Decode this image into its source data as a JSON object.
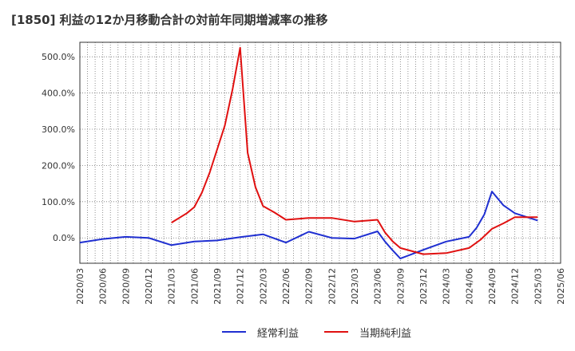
{
  "chart_data": {
    "type": "line",
    "title": "[1850]  利益の12か月移動合計の対前年同期増減率の推移",
    "xlabel": "",
    "ylabel": "",
    "ylim": [
      -70,
      540
    ],
    "yticks": [
      {
        "value": 0,
        "label": "0.0%"
      },
      {
        "value": 100,
        "label": "100.0%"
      },
      {
        "value": 200,
        "label": "200.0%"
      },
      {
        "value": 300,
        "label": "300.0%"
      },
      {
        "value": 400,
        "label": "400.0%"
      },
      {
        "value": 500,
        "label": "500.0%"
      }
    ],
    "categories": [
      "2020/03",
      "2020/06",
      "2020/09",
      "2020/12",
      "2021/03",
      "2021/06",
      "2021/09",
      "2021/12",
      "2022/03",
      "2022/06",
      "2022/09",
      "2022/12",
      "2023/03",
      "2023/06",
      "2023/09",
      "2023/12",
      "2024/03",
      "2024/06",
      "2024/09",
      "2024/12",
      "2025/03",
      "2025/06"
    ],
    "grid": true,
    "legend_position": "bottom",
    "series": [
      {
        "name": "経常利益",
        "color": "#1f2fd1",
        "points": [
          {
            "x": 0,
            "y": -13
          },
          {
            "x": 1,
            "y": -3
          },
          {
            "x": 2,
            "y": 3
          },
          {
            "x": 3,
            "y": 0
          },
          {
            "x": 4,
            "y": -20
          },
          {
            "x": 5,
            "y": -10
          },
          {
            "x": 6,
            "y": -7
          },
          {
            "x": 7,
            "y": 2
          },
          {
            "x": 8,
            "y": 10
          },
          {
            "x": 9,
            "y": -13
          },
          {
            "x": 10,
            "y": 17
          },
          {
            "x": 11,
            "y": 0
          },
          {
            "x": 12,
            "y": -2
          },
          {
            "x": 13,
            "y": 18
          },
          {
            "x": 13.33,
            "y": -10
          },
          {
            "x": 13.67,
            "y": -35
          },
          {
            "x": 14,
            "y": -57
          },
          {
            "x": 15,
            "y": -33
          },
          {
            "x": 16,
            "y": -10
          },
          {
            "x": 17,
            "y": 3
          },
          {
            "x": 17.33,
            "y": 28
          },
          {
            "x": 17.67,
            "y": 65
          },
          {
            "x": 18,
            "y": 128
          },
          {
            "x": 18.5,
            "y": 90
          },
          {
            "x": 19,
            "y": 68
          },
          {
            "x": 20,
            "y": 48
          }
        ]
      },
      {
        "name": "当期純利益",
        "color": "#e01010",
        "points": [
          {
            "x": 4,
            "y": 42
          },
          {
            "x": 4.67,
            "y": 68
          },
          {
            "x": 5,
            "y": 85
          },
          {
            "x": 5.33,
            "y": 125
          },
          {
            "x": 5.67,
            "y": 180
          },
          {
            "x": 6,
            "y": 245
          },
          {
            "x": 6.33,
            "y": 310
          },
          {
            "x": 6.67,
            "y": 410
          },
          {
            "x": 7,
            "y": 525
          },
          {
            "x": 7.33,
            "y": 235
          },
          {
            "x": 7.67,
            "y": 140
          },
          {
            "x": 8,
            "y": 88
          },
          {
            "x": 8.5,
            "y": 70
          },
          {
            "x": 9,
            "y": 50
          },
          {
            "x": 10,
            "y": 55
          },
          {
            "x": 11,
            "y": 55
          },
          {
            "x": 12,
            "y": 45
          },
          {
            "x": 13,
            "y": 50
          },
          {
            "x": 13.33,
            "y": 15
          },
          {
            "x": 13.67,
            "y": -10
          },
          {
            "x": 14,
            "y": -28
          },
          {
            "x": 15,
            "y": -45
          },
          {
            "x": 16,
            "y": -42
          },
          {
            "x": 17,
            "y": -28
          },
          {
            "x": 17.5,
            "y": -5
          },
          {
            "x": 18,
            "y": 25
          },
          {
            "x": 18.5,
            "y": 40
          },
          {
            "x": 19,
            "y": 57
          },
          {
            "x": 20,
            "y": 57
          }
        ]
      }
    ]
  }
}
